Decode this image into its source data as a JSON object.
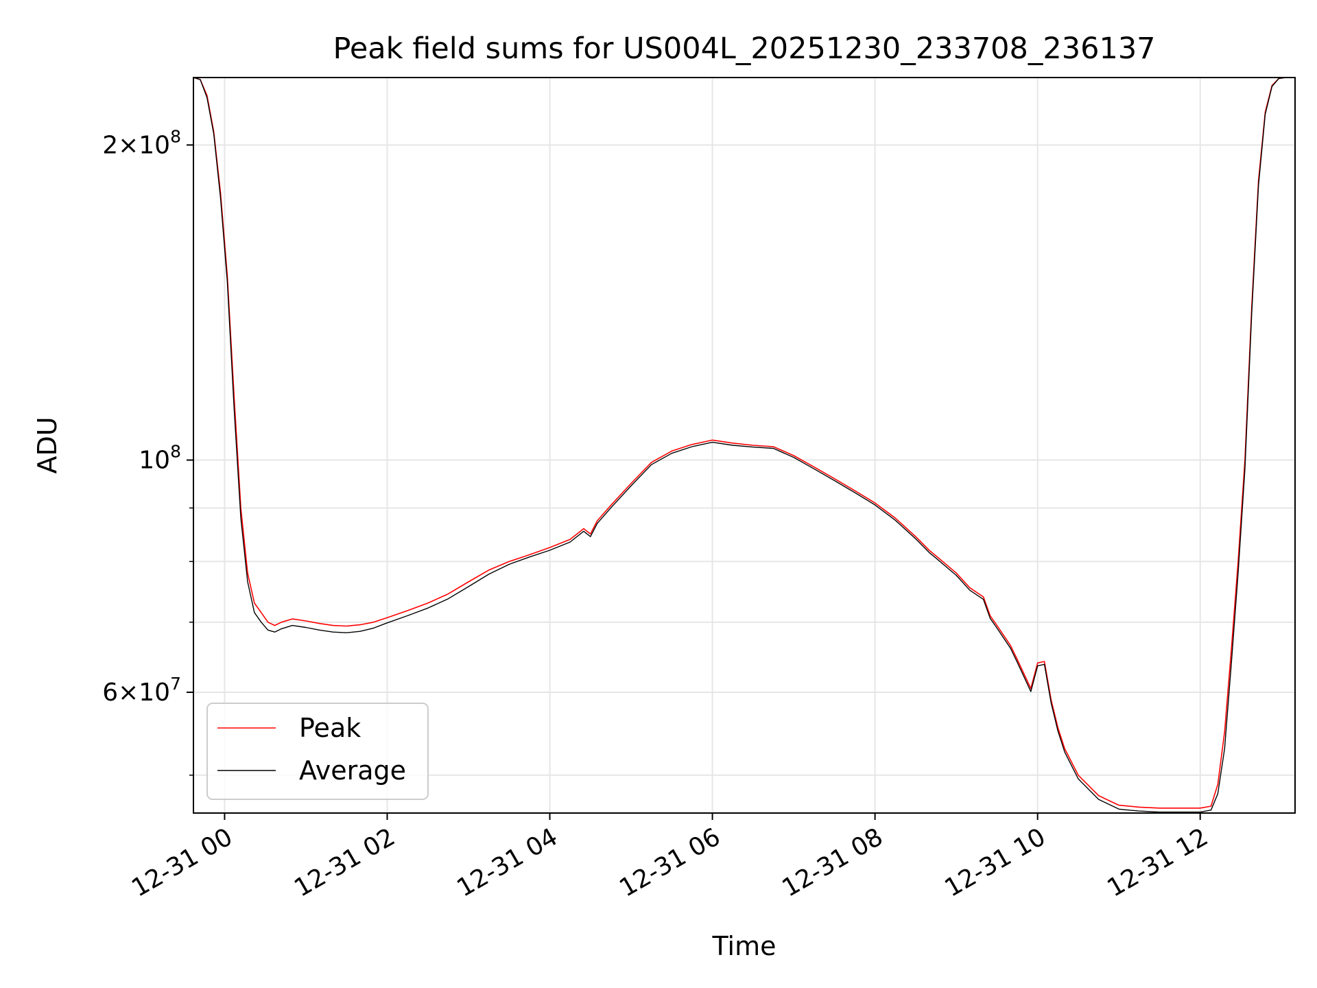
{
  "chart_data": {
    "type": "line",
    "title": "Peak field sums for US004L_20251230_233708_236137",
    "xlabel": "Time",
    "ylabel": "ADU",
    "y_scale": "log",
    "grid": true,
    "legend_position": "lower-left",
    "xlim": [
      "12-30 23:37",
      "12-31 13:10"
    ],
    "ylim": [
      46000000,
      232000000
    ],
    "x_ticks": [
      "12-31 00",
      "12-31 02",
      "12-31 04",
      "12-31 06",
      "12-31 08",
      "12-31 10",
      "12-31 12"
    ],
    "y_ticks": [
      {
        "value": 200000000,
        "mantissa": "2",
        "exponent": "8"
      },
      {
        "value": 100000000,
        "mantissa": "",
        "exponent": "8"
      },
      {
        "value": 60000000,
        "mantissa": "6",
        "exponent": "7"
      }
    ],
    "y_minor_ticks": [
      50000000,
      70000000,
      80000000,
      90000000
    ],
    "series": [
      {
        "name": "Peak",
        "color": "#ff0000",
        "x": [
          "12-30 23:37",
          "12-30 23:42",
          "12-30 23:47",
          "12-30 23:52",
          "12-30 23:57",
          "12-31 00:02",
          "12-31 00:07",
          "12-31 00:12",
          "12-31 00:17",
          "12-31 00:22",
          "12-31 00:27",
          "12-31 00:32",
          "12-31 00:37",
          "12-31 00:42",
          "12-31 00:50",
          "12-31 01:00",
          "12-31 01:10",
          "12-31 01:20",
          "12-31 01:30",
          "12-31 01:40",
          "12-31 01:50",
          "12-31 02:00",
          "12-31 02:15",
          "12-31 02:30",
          "12-31 02:45",
          "12-31 03:00",
          "12-31 03:15",
          "12-31 03:30",
          "12-31 03:45",
          "12-31 04:00",
          "12-31 04:15",
          "12-31 04:25",
          "12-31 04:30",
          "12-31 04:35",
          "12-31 04:45",
          "12-31 05:00",
          "12-31 05:15",
          "12-31 05:30",
          "12-31 05:45",
          "12-31 06:00",
          "12-31 06:15",
          "12-31 06:30",
          "12-31 06:45",
          "12-31 07:00",
          "12-31 07:15",
          "12-31 07:30",
          "12-31 07:45",
          "12-31 08:00",
          "12-31 08:15",
          "12-31 08:30",
          "12-31 08:40",
          "12-31 08:45",
          "12-31 09:00",
          "12-31 09:10",
          "12-31 09:20",
          "12-31 09:25",
          "12-31 09:30",
          "12-31 09:40",
          "12-31 09:45",
          "12-31 09:55",
          "12-31 10:00",
          "12-31 10:05",
          "12-31 10:10",
          "12-31 10:15",
          "12-31 10:20",
          "12-31 10:30",
          "12-31 10:45",
          "12-31 11:00",
          "12-31 11:15",
          "12-31 11:30",
          "12-31 11:45",
          "12-31 12:00",
          "12-31 12:08",
          "12-31 12:13",
          "12-31 12:18",
          "12-31 12:23",
          "12-31 12:28",
          "12-31 12:33",
          "12-31 12:38",
          "12-31 12:43",
          "12-31 12:48",
          "12-31 12:53",
          "12-31 12:58",
          "12-31 13:03",
          "12-31 13:10"
        ],
        "y": [
          232000000,
          231000000,
          223000000,
          206000000,
          180000000,
          150000000,
          115000000,
          90000000,
          78000000,
          73000000,
          71500000,
          70000000,
          69500000,
          70000000,
          70500000,
          70200000,
          69800000,
          69500000,
          69400000,
          69600000,
          70000000,
          70700000,
          71800000,
          73000000,
          74500000,
          76500000,
          78500000,
          80000000,
          81200000,
          82500000,
          84000000,
          86000000,
          85000000,
          87500000,
          90500000,
          95000000,
          99500000,
          102000000,
          103500000,
          104500000,
          103800000,
          103300000,
          103000000,
          101000000,
          98500000,
          96000000,
          93500000,
          91000000,
          88000000,
          84500000,
          82000000,
          81000000,
          78000000,
          75500000,
          74000000,
          71000000,
          69500000,
          66500000,
          64500000,
          60500000,
          64000000,
          64200000,
          59000000,
          55500000,
          53000000,
          50000000,
          47800000,
          46800000,
          46600000,
          46500000,
          46500000,
          46500000,
          46700000,
          49000000,
          55000000,
          66000000,
          80000000,
          100000000,
          140000000,
          185000000,
          215000000,
          228000000,
          231500000,
          232000000,
          232000000
        ]
      },
      {
        "name": "Average",
        "color": "#000000",
        "x": [
          "12-30 23:37",
          "12-30 23:42",
          "12-30 23:47",
          "12-30 23:52",
          "12-30 23:57",
          "12-31 00:02",
          "12-31 00:07",
          "12-31 00:12",
          "12-31 00:17",
          "12-31 00:22",
          "12-31 00:27",
          "12-31 00:32",
          "12-31 00:37",
          "12-31 00:42",
          "12-31 00:50",
          "12-31 01:00",
          "12-31 01:10",
          "12-31 01:20",
          "12-31 01:30",
          "12-31 01:40",
          "12-31 01:50",
          "12-31 02:00",
          "12-31 02:15",
          "12-31 02:30",
          "12-31 02:45",
          "12-31 03:00",
          "12-31 03:15",
          "12-31 03:30",
          "12-31 03:45",
          "12-31 04:00",
          "12-31 04:15",
          "12-31 04:25",
          "12-31 04:30",
          "12-31 04:35",
          "12-31 04:45",
          "12-31 05:00",
          "12-31 05:15",
          "12-31 05:30",
          "12-31 05:45",
          "12-31 06:00",
          "12-31 06:15",
          "12-31 06:30",
          "12-31 06:45",
          "12-31 07:00",
          "12-31 07:15",
          "12-31 07:30",
          "12-31 07:45",
          "12-31 08:00",
          "12-31 08:15",
          "12-31 08:30",
          "12-31 08:40",
          "12-31 08:45",
          "12-31 09:00",
          "12-31 09:10",
          "12-31 09:20",
          "12-31 09:25",
          "12-31 09:30",
          "12-31 09:40",
          "12-31 09:45",
          "12-31 09:55",
          "12-31 10:00",
          "12-31 10:05",
          "12-31 10:10",
          "12-31 10:15",
          "12-31 10:20",
          "12-31 10:30",
          "12-31 10:45",
          "12-31 11:00",
          "12-31 11:15",
          "12-31 11:30",
          "12-31 11:45",
          "12-31 12:00",
          "12-31 12:08",
          "12-31 12:13",
          "12-31 12:18",
          "12-31 12:23",
          "12-31 12:28",
          "12-31 12:33",
          "12-31 12:38",
          "12-31 12:43",
          "12-31 12:48",
          "12-31 12:53",
          "12-31 12:58",
          "12-31 13:03",
          "12-31 13:10"
        ],
        "y": [
          232000000,
          231000000,
          222000000,
          205000000,
          178000000,
          148000000,
          112000000,
          88000000,
          76500000,
          71500000,
          70000000,
          68800000,
          68500000,
          69000000,
          69500000,
          69200000,
          68800000,
          68500000,
          68400000,
          68600000,
          69100000,
          69900000,
          71000000,
          72200000,
          73700000,
          75700000,
          77800000,
          79500000,
          80800000,
          82000000,
          83500000,
          85500000,
          84500000,
          87000000,
          90000000,
          94500000,
          99000000,
          101500000,
          103000000,
          104000000,
          103300000,
          102900000,
          102600000,
          100600000,
          98100000,
          95600000,
          93100000,
          90600000,
          87600000,
          84100000,
          81600000,
          80600000,
          77600000,
          75100000,
          73600000,
          70600000,
          69100000,
          66100000,
          64100000,
          60100000,
          63600000,
          63800000,
          58600000,
          55100000,
          52600000,
          49600000,
          47400000,
          46400000,
          46200000,
          46100000,
          46100000,
          46100000,
          46300000,
          48000000,
          53000000,
          64000000,
          78000000,
          98000000,
          138000000,
          183000000,
          214000000,
          227500000,
          231500000,
          232000000,
          232000000
        ]
      }
    ]
  }
}
